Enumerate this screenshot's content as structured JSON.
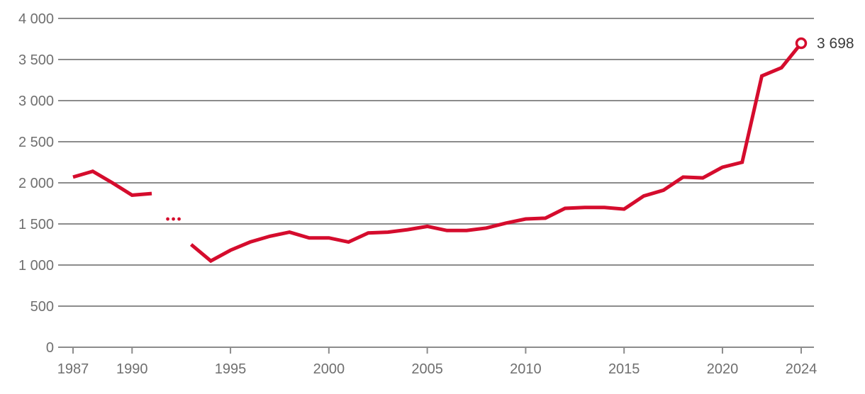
{
  "chart_data": {
    "type": "line",
    "title": "",
    "xlabel": "",
    "ylabel": "",
    "xlim": [
      1987,
      2024
    ],
    "ylim": [
      0,
      4000
    ],
    "grid": true,
    "legend": "none",
    "yticks": {
      "values": [
        0,
        500,
        1000,
        1500,
        2000,
        2500,
        3000,
        3500,
        4000
      ],
      "labels": [
        "0",
        "500",
        "1 000",
        "1 500",
        "2 000",
        "2 500",
        "3 000",
        "3 500",
        "4 000"
      ]
    },
    "xticks": {
      "values": [
        1987,
        1990,
        1995,
        2000,
        2005,
        2010,
        2015,
        2020,
        2024
      ],
      "labels": [
        "1987",
        "1990",
        "1995",
        "2000",
        "2005",
        "2010",
        "2015",
        "2020",
        "2024"
      ]
    },
    "series": [
      {
        "name": "segment-1987-1991",
        "x": [
          1987,
          1988,
          1989,
          1990,
          1991
        ],
        "y": [
          2070,
          2140,
          2000,
          1850,
          1870
        ]
      },
      {
        "name": "segment-1993-2024",
        "x": [
          1993,
          1994,
          1995,
          1996,
          1997,
          1998,
          1999,
          2000,
          2001,
          2002,
          2003,
          2004,
          2005,
          2006,
          2007,
          2008,
          2009,
          2010,
          2011,
          2012,
          2013,
          2014,
          2015,
          2016,
          2017,
          2018,
          2019,
          2020,
          2021,
          2022,
          2023,
          2024
        ],
        "y": [
          1250,
          1050,
          1180,
          1280,
          1350,
          1400,
          1330,
          1330,
          1280,
          1390,
          1400,
          1430,
          1470,
          1420,
          1420,
          1450,
          1510,
          1560,
          1570,
          1690,
          1700,
          1700,
          1680,
          1840,
          1910,
          2070,
          2060,
          2190,
          2250,
          3300,
          3400,
          3698
        ]
      }
    ],
    "gap_marker": {
      "symbol": "...",
      "year": 1992.1,
      "value": 1560
    },
    "end_marker": {
      "year": 2024,
      "value": 3698,
      "label": "3 698"
    },
    "colors": {
      "line": "#d50c2d",
      "grid": "#8c8c8c",
      "tick_label": "#6f6f6f",
      "end_label": "#3a3a3a",
      "marker_fill": "#ffffff",
      "background": "#ffffff"
    }
  }
}
